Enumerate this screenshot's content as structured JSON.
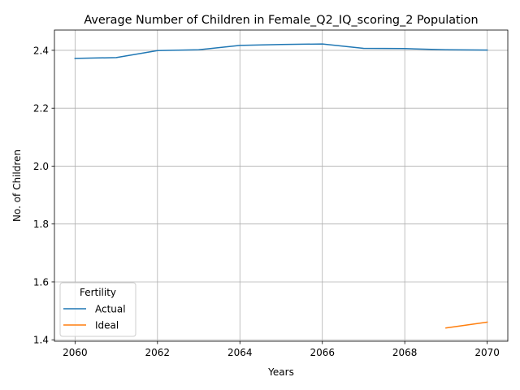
{
  "chart_data": {
    "type": "line",
    "title": "Average Number of Children in Female_Q2_IQ_scoring_2 Population",
    "xlabel": "Years",
    "ylabel": "No. of Children",
    "xlim": [
      2059.5,
      2070.5
    ],
    "ylim": [
      1.395,
      2.47
    ],
    "xticks": [
      "2060",
      "2062",
      "2064",
      "2066",
      "2068",
      "2070"
    ],
    "yticks": [
      "1.4",
      "1.6",
      "1.8",
      "2.0",
      "2.2",
      "2.4"
    ],
    "grid": true,
    "legend": {
      "title": "Fertility",
      "placement": "lower-left"
    },
    "series": [
      {
        "name": "Actual",
        "color": "#1f77b4",
        "x": [
          2060,
          2061,
          2062,
          2063,
          2064,
          2065,
          2066,
          2067,
          2068,
          2069,
          2070
        ],
        "y": [
          2.372,
          2.375,
          2.399,
          2.402,
          2.417,
          2.42,
          2.422,
          2.407,
          2.406,
          2.402,
          2.401
        ]
      },
      {
        "name": "Ideal",
        "color": "#ff7f0e",
        "x": [
          2069,
          2070
        ],
        "y": [
          1.441,
          1.461
        ]
      }
    ]
  }
}
